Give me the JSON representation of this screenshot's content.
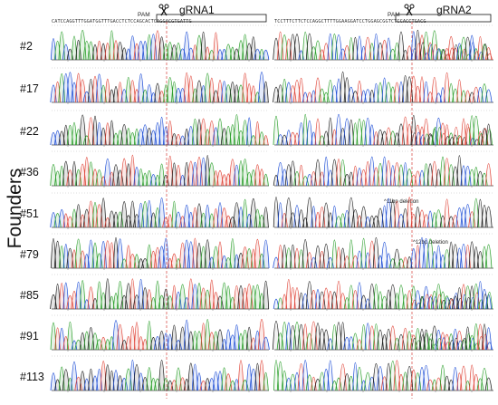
{
  "y_axis_label": "Founders",
  "panels": [
    {
      "id": "gRNA1",
      "title": "gRNA1",
      "pam_label": "PAM",
      "reference_sequence": "CATCCAGGTTTGGATGGTTTGACCTCTCCAGCACTCAGGACGTGATTG"
    },
    {
      "id": "gRNA2",
      "title": "gRNA2",
      "pam_label": "PAM",
      "reference_sequence": "TCCTTTCTTCTCCAGGCTTTTGGAAGGATCCTGGAGCGGTCTCCACCTGACG"
    }
  ],
  "founders": [
    "#2",
    "#17",
    "#22",
    "#36",
    "#51",
    "#79",
    "#85",
    "#91",
    "#113"
  ],
  "annotations": [
    {
      "panel": "gRNA2",
      "founder": "#51",
      "text": "^11bp deletion"
    },
    {
      "panel": "gRNA2",
      "founder": "#79",
      "text": "^12bp deletion"
    }
  ],
  "colors": {
    "base_A": "#2ca02c",
    "base_C": "#1f4fd6",
    "base_G": "#222222",
    "base_T": "#e0463a",
    "cut_line": "#d9534f"
  },
  "icons": [
    "scissors-icon"
  ]
}
